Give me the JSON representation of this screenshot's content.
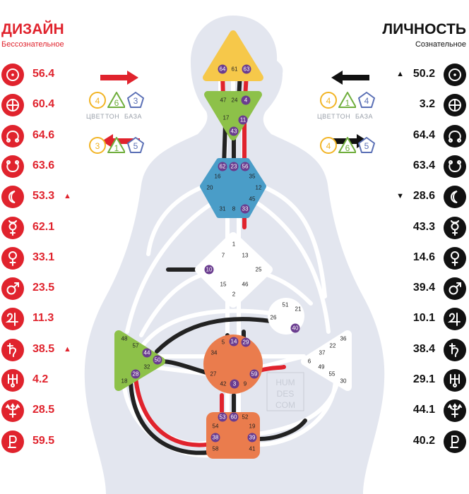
{
  "design": {
    "title": "ДИЗАЙН",
    "subtitle": "Бессознательное",
    "color": "#e0232d",
    "planets": [
      {
        "icon": "sun-icon",
        "value": "56.4",
        "marker": ""
      },
      {
        "icon": "earth-icon",
        "value": "60.4",
        "marker": ""
      },
      {
        "icon": "north-node-icon",
        "value": "64.6",
        "marker": ""
      },
      {
        "icon": "south-node-icon",
        "value": "63.6",
        "marker": ""
      },
      {
        "icon": "moon-icon",
        "value": "53.3",
        "marker": "▲"
      },
      {
        "icon": "mercury-icon",
        "value": "62.1",
        "marker": ""
      },
      {
        "icon": "venus-icon",
        "value": "33.1",
        "marker": ""
      },
      {
        "icon": "mars-icon",
        "value": "23.5",
        "marker": ""
      },
      {
        "icon": "jupiter-icon",
        "value": "11.3",
        "marker": ""
      },
      {
        "icon": "saturn-icon",
        "value": "38.5",
        "marker": "▲"
      },
      {
        "icon": "uranus-icon",
        "value": "4.2",
        "marker": ""
      },
      {
        "icon": "neptune-icon",
        "value": "28.5",
        "marker": ""
      },
      {
        "icon": "pluto-icon",
        "value": "59.5",
        "marker": ""
      }
    ],
    "variable_top": {
      "color": "4",
      "tone": "6",
      "base": "3"
    },
    "variable_bottom": {
      "color": "3",
      "tone": "1",
      "base": "5"
    }
  },
  "personality": {
    "title": "ЛИЧНОСТЬ",
    "subtitle": "Сознательное",
    "color": "#111111",
    "planets": [
      {
        "icon": "sun-icon",
        "value": "50.2",
        "marker": "▲"
      },
      {
        "icon": "earth-icon",
        "value": "3.2",
        "marker": ""
      },
      {
        "icon": "north-node-icon",
        "value": "64.4",
        "marker": ""
      },
      {
        "icon": "south-node-icon",
        "value": "63.4",
        "marker": ""
      },
      {
        "icon": "moon-icon",
        "value": "28.6",
        "marker": "▼"
      },
      {
        "icon": "mercury-icon",
        "value": "43.3",
        "marker": ""
      },
      {
        "icon": "venus-icon",
        "value": "14.6",
        "marker": ""
      },
      {
        "icon": "mars-icon",
        "value": "39.4",
        "marker": ""
      },
      {
        "icon": "jupiter-icon",
        "value": "10.1",
        "marker": ""
      },
      {
        "icon": "saturn-icon",
        "value": "38.4",
        "marker": ""
      },
      {
        "icon": "uranus-icon",
        "value": "29.1",
        "marker": ""
      },
      {
        "icon": "neptune-icon",
        "value": "44.1",
        "marker": ""
      },
      {
        "icon": "pluto-icon",
        "value": "40.2",
        "marker": ""
      }
    ],
    "variable_top": {
      "color": "4",
      "tone": "1",
      "base": "4"
    },
    "variable_bottom": {
      "color": "4",
      "tone": "6",
      "base": "5"
    }
  },
  "variable_labels": {
    "color": "ЦВЕТ",
    "tone": "ТОН",
    "base": "БАЗА"
  },
  "watermark": [
    "HUM",
    "DES",
    "COM"
  ],
  "centers": {
    "head": {
      "gates": [
        "64",
        "61",
        "63"
      ],
      "color": "#f6c84a"
    },
    "ajna": {
      "gates": [
        "47",
        "24",
        "4",
        "17",
        "11",
        "43"
      ],
      "color": "#8dc149"
    },
    "throat": {
      "gates": [
        "62",
        "23",
        "56",
        "16",
        "35",
        "20",
        "12",
        "45",
        "31",
        "8",
        "33"
      ],
      "color": "#4a9dc8"
    },
    "g": {
      "gates": [
        "1",
        "7",
        "13",
        "10",
        "25",
        "15",
        "46",
        "2"
      ],
      "color": "#ffffff"
    },
    "heart": {
      "gates": [
        "51",
        "21",
        "26",
        "40"
      ],
      "color": "#ffffff"
    },
    "sacral": {
      "gates": [
        "5",
        "14",
        "29",
        "34",
        "27",
        "59",
        "42",
        "3",
        "9"
      ],
      "color": "#ea7c4d"
    },
    "spleen": {
      "gates": [
        "48",
        "57",
        "44",
        "50",
        "32",
        "28",
        "18"
      ],
      "color": "#8dc149"
    },
    "solar": {
      "gates": [
        "36",
        "22",
        "37",
        "6",
        "49",
        "55",
        "30"
      ],
      "color": "#ffffff"
    },
    "root": {
      "gates": [
        "53",
        "60",
        "52",
        "54",
        "19",
        "38",
        "39",
        "58",
        "41"
      ],
      "color": "#ea7c4d"
    }
  }
}
